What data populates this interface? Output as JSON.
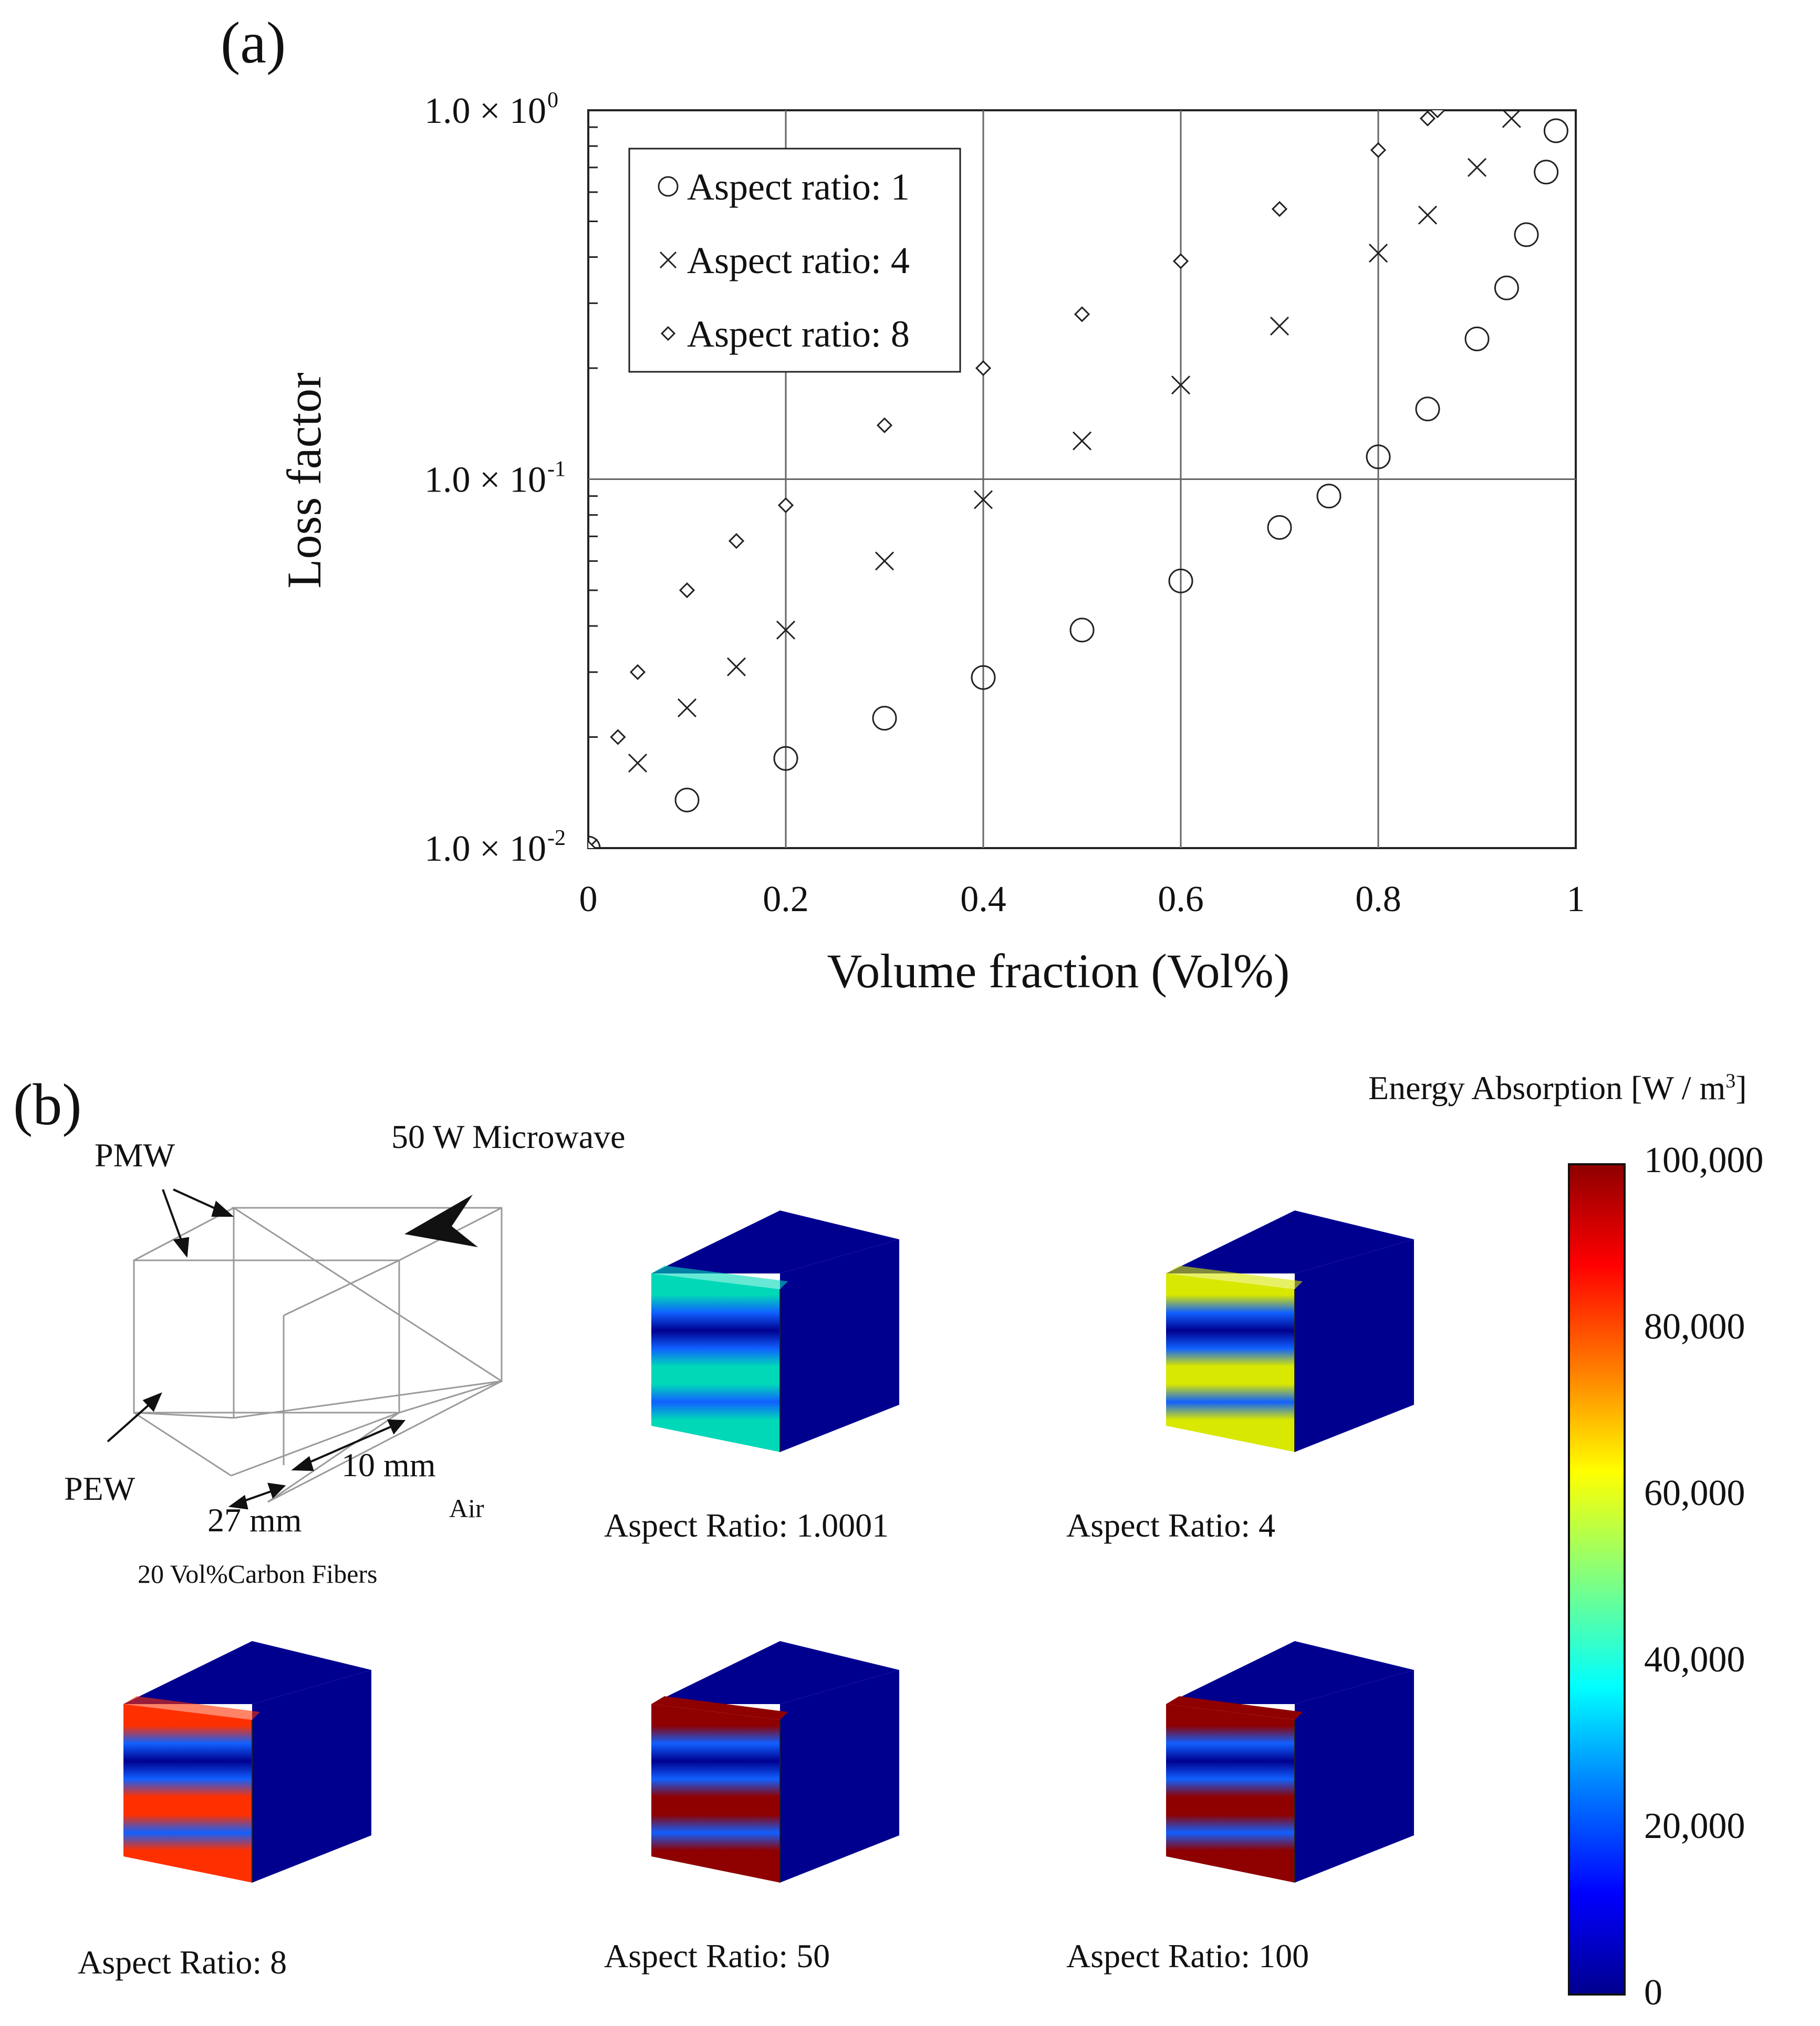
{
  "panel_a_label": "(a)",
  "panel_b_label": "(b)",
  "chart_data": {
    "type": "scatter",
    "title": "",
    "xlabel": "Volume fraction (Vol%)",
    "ylabel": "Loss factor",
    "xlim": [
      0,
      1
    ],
    "ylim": [
      0.01,
      1.0
    ],
    "yscale": "log",
    "grid": true,
    "legend_position": "top-left",
    "x_ticks": [
      "0",
      "0.2",
      "0.4",
      "0.6",
      "0.8",
      "1"
    ],
    "y_ticks": [
      {
        "mantissa": "1.0 × 10",
        "exp": "-2"
      },
      {
        "mantissa": "1.0 × 10",
        "exp": "-1"
      },
      {
        "mantissa": "1.0 × 10",
        "exp": "0"
      }
    ],
    "series": [
      {
        "name": "Aspect ratio: 1",
        "marker": "circle",
        "x": [
          0,
          0.1,
          0.2,
          0.3,
          0.4,
          0.5,
          0.6,
          0.7,
          0.75,
          0.8,
          0.85,
          0.9,
          0.93,
          0.95,
          0.97,
          0.98
        ],
        "y": [
          0.01,
          0.0135,
          0.0175,
          0.0225,
          0.029,
          0.039,
          0.053,
          0.074,
          0.09,
          0.115,
          0.155,
          0.24,
          0.33,
          0.46,
          0.68,
          0.88
        ]
      },
      {
        "name": "Aspect ratio: 4",
        "marker": "cross",
        "x": [
          0,
          0.05,
          0.1,
          0.15,
          0.2,
          0.3,
          0.4,
          0.5,
          0.6,
          0.7,
          0.8,
          0.85,
          0.9,
          0.935
        ],
        "y": [
          0.01,
          0.017,
          0.024,
          0.031,
          0.039,
          0.06,
          0.088,
          0.127,
          0.18,
          0.26,
          0.41,
          0.52,
          0.7,
          0.95
        ]
      },
      {
        "name": "Aspect ratio: 8",
        "marker": "diamond",
        "x": [
          0,
          0.03,
          0.05,
          0.1,
          0.15,
          0.2,
          0.3,
          0.4,
          0.5,
          0.6,
          0.7,
          0.8,
          0.85,
          0.86
        ],
        "y": [
          0.01,
          0.02,
          0.03,
          0.05,
          0.068,
          0.085,
          0.14,
          0.2,
          0.28,
          0.39,
          0.54,
          0.78,
          0.95,
          1.0
        ]
      }
    ]
  },
  "diagram": {
    "microwave_label": "50 W Microwave",
    "pmw_label": "PMW",
    "pew_label": "PEW",
    "dim_depth": "10 mm",
    "dim_width": "27 mm",
    "air_label": "Air",
    "material_label": "20 Vol%Carbon Fibers"
  },
  "simulations": [
    {
      "label": "Aspect Ratio: 1.0001",
      "level": 0.3
    },
    {
      "label": "Aspect Ratio: 4",
      "level": 0.5
    },
    {
      "label": "Aspect Ratio: 8",
      "level": 0.75
    },
    {
      "label": "Aspect Ratio: 50",
      "level": 1.0
    },
    {
      "label": "Aspect Ratio: 100",
      "level": 1.0
    }
  ],
  "colorbar": {
    "title": "Energy Absorption [W / m",
    "title_sup": "3",
    "title_end": "]",
    "ticks": [
      "100,000",
      "80,000",
      "60,000",
      "40,000",
      "20,000",
      "0"
    ],
    "range": [
      0,
      100000
    ]
  },
  "colors": {
    "blue_dark": "#00008f",
    "red_dark": "#8f0000"
  }
}
